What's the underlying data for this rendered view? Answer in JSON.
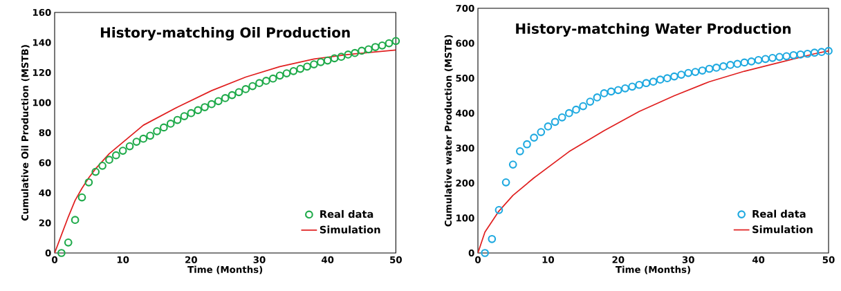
{
  "chart_data": [
    {
      "type": "line",
      "title": "History-matching Oil Production",
      "xlabel": "Time (Months)",
      "ylabel": "Cumulative Oil Production (MSTB)",
      "xlim": [
        0,
        50
      ],
      "xticks": [
        0,
        10,
        20,
        30,
        40,
        50
      ],
      "ylim": [
        0,
        160
      ],
      "yticks": [
        0,
        20,
        40,
        60,
        80,
        100,
        120,
        140,
        160
      ],
      "grid": false,
      "legend": "bottom right",
      "series": [
        {
          "name": "Real data",
          "type": "scatter",
          "marker": "circle",
          "color": "#1faa4a",
          "x": [
            1,
            2,
            3,
            4,
            5,
            6,
            7,
            8,
            9,
            10,
            11,
            12,
            13,
            14,
            15,
            16,
            17,
            18,
            19,
            20,
            21,
            22,
            23,
            24,
            25,
            26,
            27,
            28,
            29,
            30,
            31,
            32,
            33,
            34,
            35,
            36,
            37,
            38,
            39,
            40,
            41,
            42,
            43,
            44,
            45,
            46,
            47,
            48,
            49,
            50
          ],
          "values": [
            0,
            7,
            22,
            37,
            47,
            54,
            58,
            62,
            65,
            68,
            71,
            74,
            76,
            78,
            81,
            83.5,
            86,
            88.5,
            91,
            93,
            95,
            97,
            99,
            101,
            103,
            105,
            107,
            109,
            111,
            113,
            114.5,
            116,
            118,
            119.5,
            121,
            122.5,
            124,
            125.5,
            127,
            128,
            129.5,
            130.5,
            132,
            133,
            134.5,
            135.5,
            137,
            138,
            139.5,
            141
          ]
        },
        {
          "name": "Simulation",
          "marker": "none",
          "line_style": "solid",
          "color": "#e02020",
          "x": [
            0,
            1,
            2,
            3,
            4,
            5,
            6,
            8,
            13,
            18,
            23,
            28,
            33,
            38,
            43,
            50
          ],
          "values": [
            0,
            12,
            24,
            35,
            43,
            50,
            56,
            66,
            85,
            97,
            108,
            117,
            124,
            129,
            132,
            135
          ]
        }
      ]
    },
    {
      "type": "line",
      "title": "History-matching Water Production",
      "xlabel": "Time (Months)",
      "ylabel": "Cumulative water Production (MSTB)",
      "xlim": [
        0,
        50
      ],
      "xticks": [
        0,
        10,
        20,
        30,
        40,
        50
      ],
      "ylim": [
        0,
        700
      ],
      "yticks": [
        0,
        100,
        200,
        300,
        400,
        500,
        600,
        700
      ],
      "grid": false,
      "legend": "bottom right",
      "series": [
        {
          "name": "Real data",
          "type": "scatter",
          "marker": "circle",
          "color": "#1ea9e0",
          "x": [
            1,
            2,
            3,
            4,
            5,
            6,
            7,
            8,
            9,
            10,
            11,
            12,
            13,
            14,
            15,
            16,
            17,
            18,
            19,
            20,
            21,
            22,
            23,
            24,
            25,
            26,
            27,
            28,
            29,
            30,
            31,
            32,
            33,
            34,
            35,
            36,
            37,
            38,
            39,
            40,
            41,
            42,
            43,
            44,
            45,
            46,
            47,
            48,
            49,
            50
          ],
          "values": [
            0,
            40,
            123,
            202,
            253,
            291,
            311,
            330,
            346,
            362,
            375,
            388,
            400,
            410,
            420,
            433,
            445,
            457,
            462,
            466,
            471,
            476,
            481,
            486,
            490,
            496,
            500,
            505,
            510,
            515,
            518,
            522,
            527,
            530,
            534,
            538,
            541,
            545,
            548,
            552,
            555,
            558,
            561,
            563,
            566,
            568,
            570,
            573,
            575,
            578
          ]
        },
        {
          "name": "Simulation",
          "marker": "none",
          "line_style": "solid",
          "color": "#e02020",
          "x": [
            0,
            1,
            3,
            5,
            8,
            13,
            18,
            23,
            28,
            33,
            38,
            43,
            48,
            50
          ],
          "values": [
            0,
            60,
            120,
            165,
            215,
            290,
            350,
            405,
            450,
            490,
            520,
            545,
            570,
            578
          ]
        }
      ]
    }
  ]
}
